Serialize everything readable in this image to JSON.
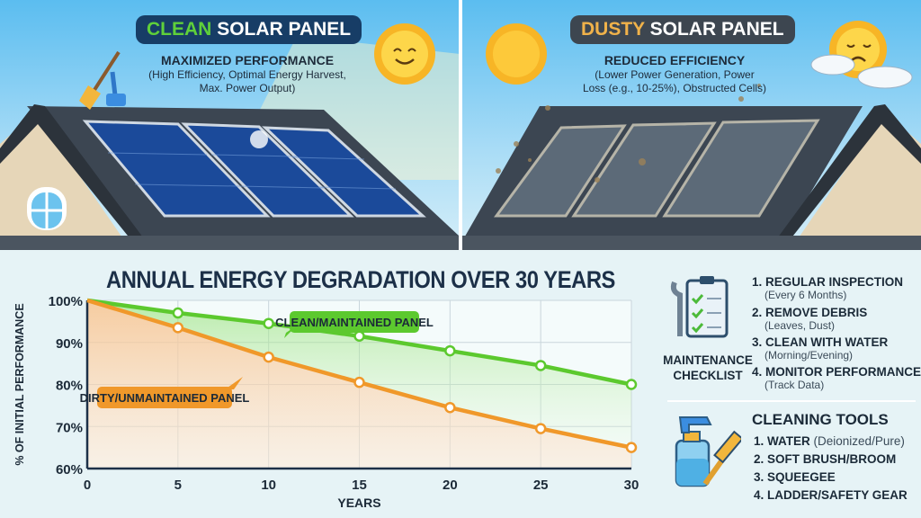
{
  "clean": {
    "title_highlight": "CLEAN",
    "title_rest": "SOLAR PANEL",
    "heading": "MAXIMIZED PERFORMANCE",
    "desc_line1": "(High Efficiency, Optimal Energy Harvest,",
    "desc_line2": "Max. Power Output)",
    "highlight_color": "#5fd03a"
  },
  "dusty": {
    "title_highlight": "DUSTY",
    "title_rest": "SOLAR PANEL",
    "heading": "REDUCED EFFICIENCY",
    "desc_line1": "(Lower Power Generation, Power",
    "desc_line2": "Loss (e.g., 10-25%), Obstructed Cells)",
    "highlight_color": "#f0b24a"
  },
  "chart_data": {
    "type": "line",
    "title": "ANNUAL ENERGY DEGRADATION OVER 30 YEARS",
    "xlabel": "YEARS",
    "ylabel": "% OF INITIAL PERFORMANCE",
    "x": [
      0,
      5,
      10,
      15,
      20,
      25,
      30
    ],
    "xticks": [
      "0",
      "5",
      "10",
      "15",
      "20",
      "25",
      "30"
    ],
    "yticks": [
      "60%",
      "70%",
      "80%",
      "90%",
      "100%"
    ],
    "ylim": [
      60,
      100
    ],
    "xlim": [
      0,
      30
    ],
    "grid": true,
    "series": [
      {
        "name": "CLEAN/MAINTAINED PANEL",
        "color": "#5cc92e",
        "values": [
          100,
          97,
          94.5,
          91.5,
          88,
          84.5,
          80
        ]
      },
      {
        "name": "DIRTY/UNMAINTAINED PANEL",
        "color": "#f0982a",
        "values": [
          100,
          93.5,
          86.5,
          80.5,
          74.5,
          69.5,
          65
        ]
      }
    ]
  },
  "checklist": {
    "label_line1": "MAINTENANCE",
    "label_line2": "CHECKLIST",
    "items": [
      {
        "title": "1. REGULAR INSPECTION",
        "note": "(Every 6 Months)"
      },
      {
        "title": "2. REMOVE DEBRIS",
        "note": "(Leaves, Dust)"
      },
      {
        "title": "3. CLEAN WITH WATER",
        "note": "(Morning/Evening)"
      },
      {
        "title": "4. MONITOR PERFORMANCE",
        "note": "(Track Data)"
      }
    ]
  },
  "tools": {
    "heading": "CLEANING TOOLS",
    "items": [
      {
        "title": "1. WATER",
        "note": "(Deionized/Pure)"
      },
      {
        "title": "2. SOFT BRUSH/BROOM",
        "note": ""
      },
      {
        "title": "3. SQUEEGEE",
        "note": ""
      },
      {
        "title": "4. LADDER/SAFETY GEAR",
        "note": ""
      }
    ]
  }
}
